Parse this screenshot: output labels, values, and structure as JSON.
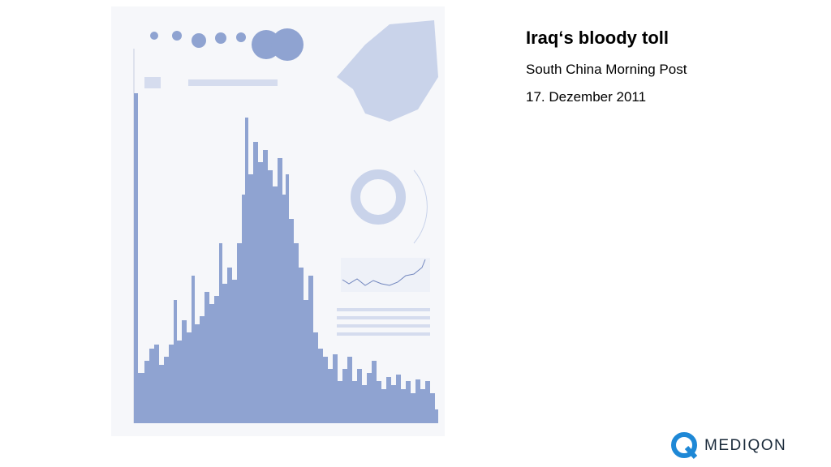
{
  "slide": {
    "title": "Iraq‘s bloody toll",
    "source": "South China Morning Post",
    "date": "17. Dezember 2011"
  },
  "logo": {
    "text": "MEDIQON"
  }
}
